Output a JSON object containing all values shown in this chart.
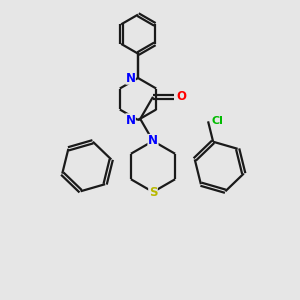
{
  "background_color": "#e6e6e6",
  "bond_color": "#1a1a1a",
  "N_color": "#0000ff",
  "O_color": "#ff0000",
  "S_color": "#b8b800",
  "Cl_color": "#00bb00",
  "line_width": 1.6,
  "figsize": [
    3.0,
    3.0
  ],
  "dpi": 100,
  "xlim": [
    0,
    10
  ],
  "ylim": [
    0,
    10
  ]
}
